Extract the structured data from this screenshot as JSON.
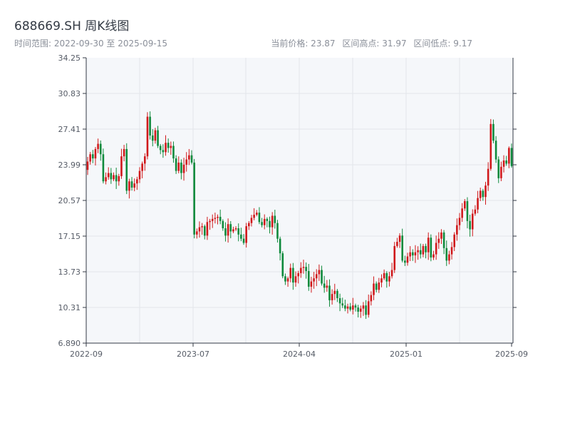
{
  "header": {
    "title": "688669.SH 周K线图",
    "date_range": "时间范围: 2022-09-30 至 2025-09-15",
    "current_price": "当前价格: 23.87",
    "range_high": "区间高点: 31.97",
    "range_low": "区间低点: 9.17"
  },
  "colors": {
    "up": "#d0191b",
    "down": "#0f8a3c",
    "plot_bg": "#f5f7fa",
    "grid": "#e2e5ea",
    "axis": "#333a44"
  },
  "chart_data": {
    "type": "candlestick",
    "title": "688669.SH 周K线图",
    "ylim": [
      6.89,
      34.25
    ],
    "y_ticks": [
      "34.25",
      "30.83",
      "27.41",
      "23.99",
      "20.57",
      "17.15",
      "13.73",
      "10.31",
      "6.890"
    ],
    "x_ticks": [
      "2022-09",
      "2023-07",
      "2024-04",
      "2025-01",
      "2025-09"
    ],
    "closes": [
      24.3,
      25.0,
      24.6,
      25.5,
      26.0,
      25.0,
      22.4,
      22.8,
      23.2,
      22.6,
      23.0,
      22.4,
      22.9,
      24.8,
      25.5,
      21.5,
      22.4,
      21.8,
      22.2,
      22.6,
      23.4,
      24.1,
      24.8,
      28.6,
      26.8,
      26.3,
      27.3,
      25.8,
      25.4,
      25.2,
      26.1,
      25.6,
      25.8,
      24.6,
      23.4,
      24.2,
      23.2,
      24.0,
      24.5,
      24.9,
      24.2,
      17.3,
      17.6,
      18.0,
      18.1,
      17.2,
      18.5,
      18.6,
      18.8,
      18.9,
      19.0,
      18.6,
      17.9,
      17.2,
      18.3,
      17.6,
      17.8,
      17.9,
      17.3,
      16.9,
      16.5,
      18.1,
      18.4,
      18.9,
      19.2,
      19.4,
      18.5,
      18.2,
      18.8,
      18.6,
      18.0,
      19.1,
      18.4,
      16.9,
      15.5,
      13.3,
      12.8,
      13.1,
      14.1,
      12.7,
      13.3,
      13.6,
      14.1,
      14.2,
      13.8,
      12.3,
      12.8,
      13.1,
      13.5,
      13.9,
      12.6,
      12.2,
      12.4,
      11.0,
      11.6,
      11.9,
      11.2,
      10.7,
      10.5,
      10.2,
      10.4,
      10.1,
      10.5,
      10.3,
      9.9,
      10.2,
      10.5,
      9.6,
      10.9,
      11.5,
      12.6,
      12.0,
      12.7,
      13.1,
      13.6,
      12.8,
      13.3,
      13.9,
      16.2,
      16.6,
      17.2,
      14.8,
      14.6,
      15.2,
      15.6,
      15.3,
      15.6,
      15.8,
      15.4,
      16.2,
      15.6,
      17.0,
      15.1,
      15.4,
      16.5,
      16.9,
      17.5,
      16.0,
      14.8,
      15.4,
      16.1,
      17.3,
      18.2,
      18.9,
      19.8,
      20.5,
      18.6,
      17.8,
      19.3,
      19.7,
      20.8,
      21.5,
      20.9,
      22.0,
      23.6,
      27.9,
      26.3,
      24.5,
      22.7,
      23.8,
      24.4,
      24.1,
      25.6,
      23.87
    ]
  }
}
